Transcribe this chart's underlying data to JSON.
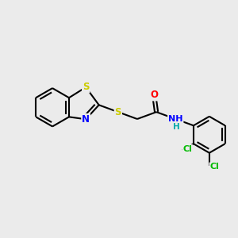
{
  "background_color": "#ebebeb",
  "atom_colors": {
    "S": "#cccc00",
    "N": "#0000ff",
    "O": "#ff0000",
    "Cl": "#00bb00",
    "C": "#000000",
    "H": "#00aaaa"
  },
  "bond_color": "#000000",
  "bond_width": 1.5,
  "font_size_atoms": 8.5
}
